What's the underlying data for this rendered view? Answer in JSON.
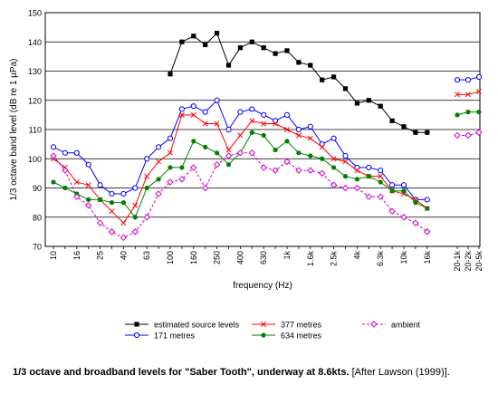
{
  "chart_data": {
    "type": "line",
    "ylabel": "1/3 octave band level (dB re 1 µPa)",
    "xlabel": "frequency (Hz)",
    "ylim": [
      70,
      150
    ],
    "yticks": [
      70,
      80,
      90,
      100,
      110,
      120,
      130,
      140,
      150
    ],
    "grid": "horizontal",
    "legend": "below",
    "categories": [
      "10",
      "12.5",
      "16",
      "20",
      "25",
      "31.5",
      "40",
      "50",
      "63",
      "80",
      "100",
      "125",
      "160",
      "200",
      "250",
      "315",
      "400",
      "500",
      "630",
      "800",
      "1k",
      "1.25k",
      "1.6k",
      "2k",
      "2.5k",
      "3.15k",
      "4k",
      "5k",
      "6.3k",
      "8k",
      "10k",
      "12.5k",
      "16k",
      "20-1k",
      "20-2k",
      "20-5k"
    ],
    "tick_labels": [
      "10",
      "",
      "16",
      "",
      "25",
      "",
      "40",
      "",
      "63",
      "",
      "100",
      "",
      "160",
      "",
      "250",
      "",
      "400",
      "",
      "630",
      "",
      "1k",
      "",
      "1.6k",
      "",
      "2.5k",
      "",
      "4k",
      "",
      "6.3k",
      "",
      "10k",
      "",
      "16k",
      "20-1k",
      "20-2k",
      "20-5k"
    ],
    "series": [
      {
        "name": "estimated source levels",
        "color": "#000000",
        "marker": "filled-square",
        "values": [
          null,
          null,
          null,
          null,
          null,
          null,
          null,
          null,
          null,
          null,
          129,
          140,
          142,
          139,
          143,
          132,
          138,
          140,
          138,
          136,
          137,
          133,
          132,
          127,
          128,
          124,
          119,
          120,
          118,
          113,
          111,
          109,
          109,
          null,
          null,
          null
        ]
      },
      {
        "name": "171 metres",
        "color": "#0000ff",
        "marker": "open-circle",
        "values": [
          104,
          102,
          102,
          98,
          91,
          88,
          88,
          90,
          100,
          104,
          107,
          117,
          118,
          116,
          120,
          110,
          116,
          117,
          115,
          113,
          115,
          110,
          111,
          105,
          107,
          101,
          97,
          97,
          96,
          91,
          91,
          86,
          86,
          127,
          127,
          128
        ]
      },
      {
        "name": "377 metres",
        "color": "#ff0000",
        "marker": "x",
        "values": [
          100,
          97,
          92,
          91,
          86,
          82,
          78,
          84,
          94,
          99,
          102,
          115,
          115,
          112,
          112,
          103,
          108,
          113,
          112,
          112,
          110,
          108,
          107,
          104,
          100,
          99,
          96,
          94,
          94,
          89,
          88,
          86,
          83,
          122,
          122,
          123
        ]
      },
      {
        "name": "634 metres",
        "color": "#008000",
        "marker": "filled-circle",
        "values": [
          92,
          90,
          88,
          86,
          86,
          85,
          85,
          80,
          90,
          93,
          97,
          97,
          106,
          104,
          102,
          98,
          102,
          109,
          108,
          103,
          106,
          102,
          101,
          100,
          97,
          94,
          93,
          94,
          92,
          89,
          89,
          85,
          83,
          115,
          116,
          116
        ]
      },
      {
        "name": "ambient",
        "color": "#cc00cc",
        "marker": "open-diamond",
        "values": [
          101,
          96,
          87,
          84,
          78,
          75,
          73,
          75,
          80,
          88,
          92,
          93,
          97,
          90,
          98,
          101,
          102,
          102,
          97,
          96,
          99,
          96,
          96,
          95,
          91,
          90,
          90,
          87,
          87,
          82,
          80,
          78,
          75,
          108,
          108,
          109
        ]
      }
    ]
  },
  "caption": {
    "main": "1/3 octave and broadband levels for \"Saber Tooth\", underway at 8.6kts.",
    "source": "[After Lawson (1999)]."
  }
}
